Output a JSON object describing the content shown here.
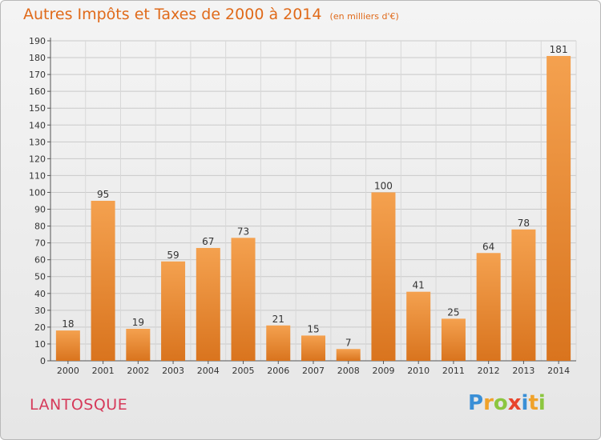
{
  "chart_data": {
    "type": "bar",
    "title": "Autres Impôts et Taxes de 2000 à 2014",
    "subtitle": "(en milliers d'€)",
    "categories": [
      "2000",
      "2001",
      "2002",
      "2003",
      "2004",
      "2005",
      "2006",
      "2007",
      "2008",
      "2009",
      "2010",
      "2011",
      "2012",
      "2013",
      "2014"
    ],
    "values": [
      18,
      95,
      19,
      59,
      67,
      73,
      21,
      15,
      7,
      100,
      41,
      25,
      64,
      78,
      181
    ],
    "ylim": [
      0,
      190
    ],
    "yticks": [
      0,
      10,
      20,
      30,
      40,
      50,
      60,
      70,
      80,
      90,
      100,
      110,
      120,
      130,
      140,
      150,
      160,
      170,
      180,
      190
    ],
    "grid": true,
    "legend": "none",
    "bar_color_light": "#f4a14f",
    "bar_color_dark": "#d9741e"
  },
  "place_name": "LANTOSQUE",
  "logo": {
    "letters": [
      "P",
      "r",
      "o",
      "x",
      "i",
      "t",
      "i"
    ],
    "colors": [
      "#3a8fd6",
      "#f0a22a",
      "#8cc63f",
      "#e8452c",
      "#3a8fd6",
      "#f0a22a",
      "#8cc63f"
    ]
  }
}
